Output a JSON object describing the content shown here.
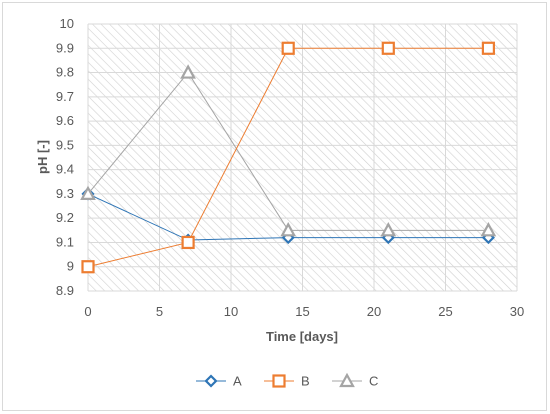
{
  "chart_data": {
    "type": "line",
    "xlabel": "Time [days]",
    "ylabel": "pH [-]",
    "xlim": [
      0,
      30
    ],
    "ylim": [
      8.9,
      10
    ],
    "x_ticks": [
      "0",
      "5",
      "10",
      "15",
      "20",
      "25",
      "30"
    ],
    "y_ticks": [
      "8.9",
      "9",
      "9.1",
      "9.2",
      "9.3",
      "9.4",
      "9.5",
      "9.6",
      "9.7",
      "9.8",
      "9.9",
      "10"
    ],
    "x_tick_values": [
      0,
      5,
      10,
      15,
      20,
      25,
      30
    ],
    "y_tick_values": [
      8.9,
      9.0,
      9.1,
      9.2,
      9.3,
      9.4,
      9.5,
      9.6,
      9.7,
      9.8,
      9.9,
      10.0
    ],
    "grid": true,
    "plot_background": "diagonal-hatch",
    "legend_position": "bottom",
    "series": [
      {
        "name": "A",
        "marker": "diamond",
        "color": "#2E75B6",
        "x": [
          0,
          7,
          14,
          21,
          28
        ],
        "y": [
          9.3,
          9.11,
          9.12,
          9.12,
          9.12
        ]
      },
      {
        "name": "B",
        "marker": "square",
        "color": "#ED7D31",
        "x": [
          0,
          7,
          14,
          21,
          28
        ],
        "y": [
          9.0,
          9.1,
          9.9,
          9.9,
          9.9
        ]
      },
      {
        "name": "C",
        "marker": "triangle",
        "color": "#A5A5A5",
        "x": [
          0,
          7,
          14,
          21,
          28
        ],
        "y": [
          9.3,
          9.8,
          9.15,
          9.15,
          9.15
        ]
      }
    ]
  }
}
